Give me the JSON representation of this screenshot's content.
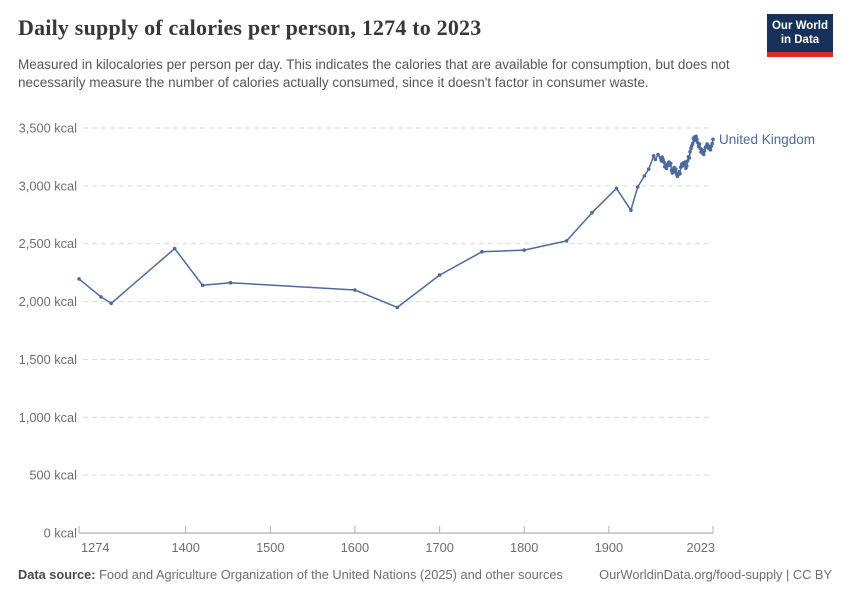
{
  "header": {
    "title": "Daily supply of calories per person, 1274 to 2023",
    "subtitle": "Measured in kilocalories per person per day. This indicates the calories that are available for consumption, but does not necessarily measure the number of calories actually consumed, since it doesn't factor in consumer waste.",
    "logo": {
      "line1": "Our World",
      "line2": "in Data",
      "bg_color": "#16315a",
      "stripe_color": "#dc2e27"
    }
  },
  "chart_data": {
    "type": "line",
    "title": "Daily supply of calories per person, 1274 to 2023",
    "unit": "kcal",
    "xlim": [
      1274,
      2023
    ],
    "ylim": [
      0,
      3500
    ],
    "grid": "horizontal-dashed",
    "legend_position": "end-of-line label",
    "x_ticks": [
      {
        "value": 1274,
        "label": "1274"
      },
      {
        "value": 1400,
        "label": "1400"
      },
      {
        "value": 1500,
        "label": "1500"
      },
      {
        "value": 1600,
        "label": "1600"
      },
      {
        "value": 1700,
        "label": "1700"
      },
      {
        "value": 1800,
        "label": "1800"
      },
      {
        "value": 1900,
        "label": "1900"
      },
      {
        "value": 2023,
        "label": "2023"
      }
    ],
    "y_ticks": [
      {
        "value": 0,
        "label": "0 kcal"
      },
      {
        "value": 500,
        "label": "500 kcal"
      },
      {
        "value": 1000,
        "label": "1,000 kcal"
      },
      {
        "value": 1500,
        "label": "1,500 kcal"
      },
      {
        "value": 2000,
        "label": "2,000 kcal"
      },
      {
        "value": 2500,
        "label": "2,500 kcal"
      },
      {
        "value": 3000,
        "label": "3,000 kcal"
      },
      {
        "value": 3500,
        "label": "3,500 kcal"
      }
    ],
    "series": [
      {
        "name": "United Kingdom",
        "color": "#4c6a9c",
        "points": [
          [
            1274,
            2196
          ],
          [
            1300,
            2040
          ],
          [
            1312,
            1985
          ],
          [
            1387,
            2458
          ],
          [
            1420,
            2141
          ],
          [
            1453,
            2163
          ],
          [
            1600,
            2100
          ],
          [
            1650,
            1950
          ],
          [
            1700,
            2229
          ],
          [
            1750,
            2430
          ],
          [
            1800,
            2445
          ],
          [
            1850,
            2524
          ],
          [
            1880,
            2768
          ],
          [
            1909,
            2978
          ],
          [
            1926,
            2790
          ],
          [
            1934,
            2990
          ],
          [
            1942,
            3085
          ],
          [
            1947,
            3145
          ],
          [
            1953,
            3260
          ],
          [
            1955,
            3228
          ],
          [
            1958,
            3270
          ],
          [
            1961,
            3240
          ],
          [
            1962,
            3215
          ],
          [
            1963,
            3248
          ],
          [
            1964,
            3228
          ],
          [
            1965,
            3205
          ],
          [
            1966,
            3165
          ],
          [
            1967,
            3185
          ],
          [
            1968,
            3150
          ],
          [
            1969,
            3172
          ],
          [
            1970,
            3192
          ],
          [
            1971,
            3205
          ],
          [
            1972,
            3178
          ],
          [
            1973,
            3195
          ],
          [
            1974,
            3135
          ],
          [
            1975,
            3112
          ],
          [
            1976,
            3142
          ],
          [
            1977,
            3158
          ],
          [
            1978,
            3122
          ],
          [
            1979,
            3145
          ],
          [
            1980,
            3102
          ],
          [
            1981,
            3082
          ],
          [
            1982,
            3098
          ],
          [
            1983,
            3122
          ],
          [
            1984,
            3105
          ],
          [
            1985,
            3162
          ],
          [
            1986,
            3188
          ],
          [
            1987,
            3172
          ],
          [
            1988,
            3198
          ],
          [
            1989,
            3182
          ],
          [
            1990,
            3205
          ],
          [
            1991,
            3152
          ],
          [
            1992,
            3172
          ],
          [
            1993,
            3215
          ],
          [
            1994,
            3252
          ],
          [
            1995,
            3242
          ],
          [
            1996,
            3295
          ],
          [
            1997,
            3325
          ],
          [
            1998,
            3345
          ],
          [
            1999,
            3365
          ],
          [
            2000,
            3408
          ],
          [
            2001,
            3422
          ],
          [
            2002,
            3392
          ],
          [
            2003,
            3428
          ],
          [
            2004,
            3402
          ],
          [
            2005,
            3372
          ],
          [
            2006,
            3342
          ],
          [
            2007,
            3362
          ],
          [
            2008,
            3322
          ],
          [
            2009,
            3292
          ],
          [
            2010,
            3312
          ],
          [
            2011,
            3282
          ],
          [
            2012,
            3272
          ],
          [
            2013,
            3302
          ],
          [
            2014,
            3332
          ],
          [
            2015,
            3342
          ],
          [
            2016,
            3362
          ],
          [
            2017,
            3348
          ],
          [
            2018,
            3322
          ],
          [
            2019,
            3338
          ],
          [
            2020,
            3312
          ],
          [
            2021,
            3342
          ],
          [
            2022,
            3365
          ],
          [
            2023,
            3402
          ]
        ]
      }
    ]
  },
  "footer": {
    "source_label": "Data source:",
    "source_text": " Food and Agriculture Organization of the United Nations (2025) and other sources",
    "url": "OurWorldinData.org/food-supply",
    "separator": " | ",
    "license": "CC BY"
  }
}
